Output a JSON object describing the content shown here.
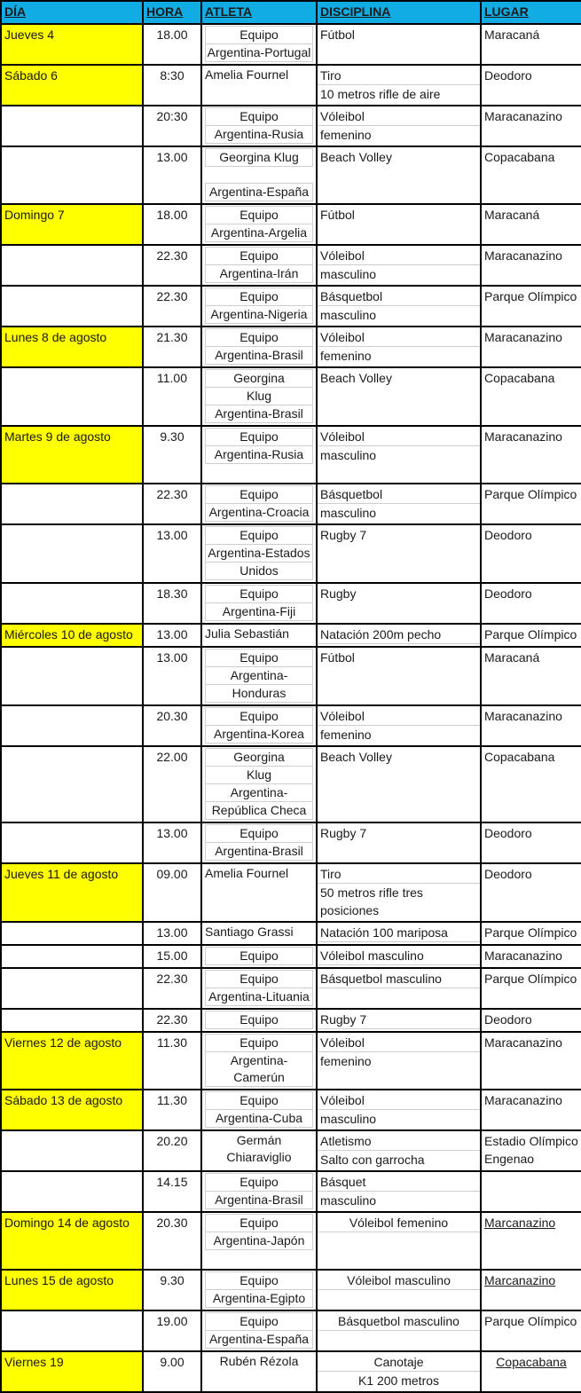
{
  "table": {
    "colors": {
      "header_bg": "#12ACE4",
      "day_highlight": "#FFFF00",
      "border": "#000000",
      "gridline": "#CFCDCD",
      "text": "#1A1A1A"
    },
    "headers": [
      "DÍA",
      "HORA",
      "ATLETA",
      "DISCIPLINA",
      "LUGAR"
    ],
    "rows": [
      {
        "dia": "Jueves 4",
        "dia_yellow": true,
        "hora": "18.00",
        "atleta": [
          "Equipo",
          "Argentina-Portugal"
        ],
        "atleta_style": "boxed",
        "disciplina": [
          "Fútbol"
        ],
        "lugar": [
          "Maracaná"
        ]
      },
      {
        "dia": "Sábado 6",
        "dia_yellow": true,
        "hora": "8:30",
        "atleta": [
          "Amelia Fournel"
        ],
        "atleta_style": "left",
        "disciplina": [
          "Tiro",
          "10 metros rifle de aire"
        ],
        "lugar": [
          "Deodoro"
        ]
      },
      {
        "dia": "",
        "dia_yellow": false,
        "hora": "20:30",
        "atleta": [
          "Equipo",
          "Argentina-Rusia"
        ],
        "atleta_style": "boxed",
        "disciplina": [
          "Vóleibol",
          "femenino"
        ],
        "lugar": [
          "Maracanazino"
        ]
      },
      {
        "dia": "",
        "dia_yellow": false,
        "hora": "13.00",
        "atleta": [
          "Georgina Klug",
          "",
          "Argentina-España"
        ],
        "atleta_style": "boxed",
        "disciplina": [
          "Beach Volley"
        ],
        "lugar": [
          "Copacabana"
        ]
      },
      {
        "dia": "Domingo 7",
        "dia_yellow": true,
        "hora": "18.00",
        "atleta": [
          "Equipo",
          "Argentina-Argelia"
        ],
        "atleta_style": "boxed",
        "disciplina": [
          "Fútbol"
        ],
        "lugar": [
          "Maracaná"
        ]
      },
      {
        "dia": "",
        "dia_yellow": false,
        "hora": "22.30",
        "atleta": [
          "Equipo",
          "Argentina-Irán"
        ],
        "atleta_style": "boxed",
        "disciplina": [
          "Vóleibol",
          "masculino"
        ],
        "lugar": [
          "Maracanazino"
        ]
      },
      {
        "dia": "",
        "dia_yellow": false,
        "hora": "22.30",
        "atleta": [
          "Equipo",
          "Argentina-Nigeria"
        ],
        "atleta_style": "boxed",
        "disciplina": [
          "Básquetbol",
          "masculino"
        ],
        "lugar": [
          "Parque Olímpico"
        ]
      },
      {
        "dia": "Lunes 8 de agosto",
        "dia_yellow": true,
        "hora": "21.30",
        "atleta": [
          "Equipo",
          "Argentina-Brasil"
        ],
        "atleta_style": "boxed",
        "disciplina": [
          "Vóleibol",
          "femenino"
        ],
        "lugar": [
          "Maracanazino"
        ]
      },
      {
        "dia": "",
        "dia_yellow": false,
        "hora": "11.00",
        "atleta": [
          "Georgina",
          "Klug",
          "Argentina-Brasil"
        ],
        "atleta_style": "boxed",
        "disciplina": [
          "Beach Volley"
        ],
        "lugar": [
          "Copacabana"
        ]
      },
      {
        "dia": "Martes 9 de agosto",
        "dia_yellow": true,
        "hora": "9.30",
        "atleta": [
          "Equipo",
          "Argentina-Rusia"
        ],
        "atleta_style": "boxed",
        "disciplina": [
          "Vóleibol",
          "masculino"
        ],
        "lugar": [
          "Maracanazino"
        ],
        "atleta_trailing_space": true
      },
      {
        "dia": "",
        "dia_yellow": false,
        "hora": "22.30",
        "atleta": [
          "Equipo",
          "Argentina-Croacia"
        ],
        "atleta_style": "boxed",
        "disciplina": [
          "Básquetbol",
          "masculino"
        ],
        "lugar": [
          "Parque Olímpico"
        ]
      },
      {
        "dia": "",
        "dia_yellow": false,
        "hora": "13.00",
        "atleta": [
          "Equipo",
          "Argentina-Estados",
          "Unidos"
        ],
        "atleta_style": "boxed",
        "disciplina": [
          "Rugby 7"
        ],
        "lugar": [
          "Deodoro"
        ]
      },
      {
        "dia": "",
        "dia_yellow": false,
        "hora": "18.30",
        "atleta": [
          "Equipo",
          "Argentina-Fiji"
        ],
        "atleta_style": "boxed",
        "disciplina": [
          "Rugby"
        ],
        "lugar": [
          "Deodoro"
        ]
      },
      {
        "dia": "Miércoles 10 de agosto",
        "dia_yellow": true,
        "hora": "13.00",
        "atleta": [
          "Julia Sebastián"
        ],
        "atleta_style": "left",
        "disciplina": [
          "Natación 200m pecho"
        ],
        "disc_underline": true,
        "lugar": [
          "Parque Olímpico"
        ]
      },
      {
        "dia": "",
        "dia_yellow": false,
        "hora": "13.00",
        "atleta": [
          "Equipo",
          "Argentina-",
          "Honduras"
        ],
        "atleta_style": "boxed",
        "disciplina": [
          "Fútbol"
        ],
        "lugar": [
          "Maracaná"
        ]
      },
      {
        "dia": "",
        "dia_yellow": false,
        "hora": "20.30",
        "atleta": [
          "Equipo",
          "Argentina-Korea"
        ],
        "atleta_style": "boxed",
        "disciplina": [
          "Vóleibol",
          "femenino"
        ],
        "lugar": [
          "Maracanazino"
        ]
      },
      {
        "dia": "",
        "dia_yellow": false,
        "hora": "22.00",
        "atleta": [
          "Georgina",
          "Klug",
          "Argentina-",
          "República Checa"
        ],
        "atleta_style": "boxed",
        "disciplina": [
          "Beach Volley"
        ],
        "lugar": [
          "Copacabana"
        ]
      },
      {
        "dia": "",
        "dia_yellow": false,
        "hora": "13.00",
        "atleta": [
          "Equipo",
          "Argentina-Brasil"
        ],
        "atleta_style": "boxed",
        "disciplina": [
          "Rugby 7"
        ],
        "lugar": [
          "Deodoro"
        ]
      },
      {
        "dia": "Jueves 11 de agosto",
        "dia_yellow": true,
        "hora": "09.00",
        "atleta": [
          "Amelia Fournel"
        ],
        "atleta_style": "left",
        "disciplina": [
          "Tiro",
          "50 metros rifle tres",
          "posiciones"
        ],
        "lugar": [
          "Deodoro"
        ]
      },
      {
        "dia": "",
        "dia_yellow": false,
        "hora": "13.00",
        "atleta": [
          "Santiago Grassi"
        ],
        "atleta_style": "left",
        "disciplina": [
          "Natación 100 mariposa"
        ],
        "disc_underline": true,
        "lugar": [
          "Parque Olímpico"
        ]
      },
      {
        "dia": "",
        "dia_yellow": false,
        "hora": "15.00",
        "atleta": [
          "Equipo"
        ],
        "atleta_style": "boxed",
        "disciplina": [
          "Vóleibol masculino"
        ],
        "disc_underline": true,
        "lugar": [
          "Maracanazino"
        ]
      },
      {
        "dia": "",
        "dia_yellow": false,
        "hora": "22.30",
        "atleta": [
          "Equipo",
          "Argentina-Lituania"
        ],
        "atleta_style": "boxed",
        "disciplina": [
          "Básquetbol masculino"
        ],
        "disc_underline": true,
        "lugar": [
          "Parque Olímpico"
        ]
      },
      {
        "dia": "",
        "dia_yellow": false,
        "hora": "22.30",
        "atleta": [
          "Equipo"
        ],
        "atleta_style": "boxed",
        "disciplina": [
          "Rugby 7"
        ],
        "disc_underline": true,
        "lugar": [
          "Deodoro"
        ]
      },
      {
        "dia": "Viernes 12 de agosto",
        "dia_yellow": true,
        "hora": "11.30",
        "atleta": [
          "Equipo",
          "Argentina-Camerún"
        ],
        "atleta_style": "boxed",
        "disciplina": [
          "Vóleibol",
          "femenino"
        ],
        "lugar": [
          "Maracanazino"
        ]
      },
      {
        "dia": "Sábado 13 de agosto",
        "dia_yellow": true,
        "hora": "11.30",
        "atleta": [
          "Equipo",
          "Argentina-Cuba"
        ],
        "atleta_style": "boxed",
        "disciplina": [
          "Vóleibol",
          "masculino"
        ],
        "lugar": [
          "Maracanazino"
        ]
      },
      {
        "dia": "",
        "dia_yellow": false,
        "hora": "20.20",
        "atleta": [
          "Germán",
          "Chiaraviglio"
        ],
        "atleta_style": "center",
        "disciplina": [
          "Atletismo",
          "Salto con garrocha"
        ],
        "lugar": [
          "Estadio Olímpico",
          "Engenao"
        ]
      },
      {
        "dia": "",
        "dia_yellow": false,
        "hora": "14.15",
        "atleta": [
          "Equipo",
          "Argentina-Brasil"
        ],
        "atleta_style": "boxed",
        "disciplina": [
          "Básquet",
          "masculino"
        ],
        "lugar": []
      },
      {
        "dia": "Domingo 14 de agosto",
        "dia_yellow": true,
        "hora": "20.30",
        "atleta": [
          "Equipo",
          "Argentina-Japón",
          ""
        ],
        "atleta_style": "boxed",
        "disciplina": [
          "Vóleibol femenino"
        ],
        "disc_underline": true,
        "disc_center": true,
        "lugar": [
          "Marcanazino"
        ],
        "lugar_underline": true
      },
      {
        "dia": "Lunes 15 de agosto",
        "dia_yellow": true,
        "hora": "9.30",
        "atleta": [
          "Equipo",
          "Argentina-Egipto"
        ],
        "atleta_style": "boxed",
        "disciplina": [
          "Vóleibol masculino"
        ],
        "disc_underline": true,
        "disc_center": true,
        "lugar": [
          "Marcanazino"
        ],
        "lugar_underline": true
      },
      {
        "dia": "",
        "dia_yellow": false,
        "hora": "19.00",
        "atleta": [
          "Equipo",
          "Argentina-España"
        ],
        "atleta_style": "boxed",
        "disciplina": [
          "Básquetbol masculino"
        ],
        "disc_underline": true,
        "disc_center": true,
        "lugar": [
          "Parque Olímpico"
        ]
      },
      {
        "dia": "Viernes 19",
        "dia_yellow": true,
        "hora": "9.00",
        "atleta": [
          "Rubén Rézola"
        ],
        "atleta_style": "center",
        "disciplina": [
          "Canotaje",
          "K1 200 metros"
        ],
        "disc_center": true,
        "lugar": [
          "Copacabana"
        ],
        "lugar_underline": true,
        "lugar_center": true
      }
    ]
  }
}
